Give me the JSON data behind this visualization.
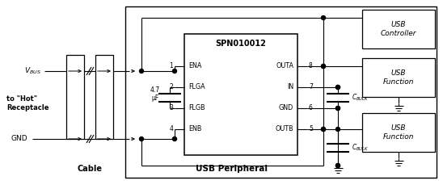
{
  "bg_color": "#ffffff",
  "line_color": "#000000",
  "chip_label": "SPN010012",
  "chip_pins_left": [
    "ENA",
    "FLGA",
    "FLGB",
    "ENB"
  ],
  "chip_pins_right": [
    "OUTA",
    "IN",
    "GND",
    "OUTB"
  ],
  "chip_pin_nums_left": [
    "1",
    "2",
    "3",
    "4"
  ],
  "chip_pin_nums_right": [
    "8",
    "7",
    "6",
    "5"
  ],
  "cable_label": "Cable",
  "usb_peripheral_label": "USB Peripheral",
  "cap_label_val": "4.7",
  "cap_label_unit": "μF",
  "cbulk_label": "C_{BULK}",
  "vbus_label": "V_{BUS}",
  "gnd_label": "GND",
  "hot_receptacle": "to \"Hot\"\nReceptacle",
  "usb_controller_label": "USB\nController",
  "usb_function_label": "USB\nFunction"
}
